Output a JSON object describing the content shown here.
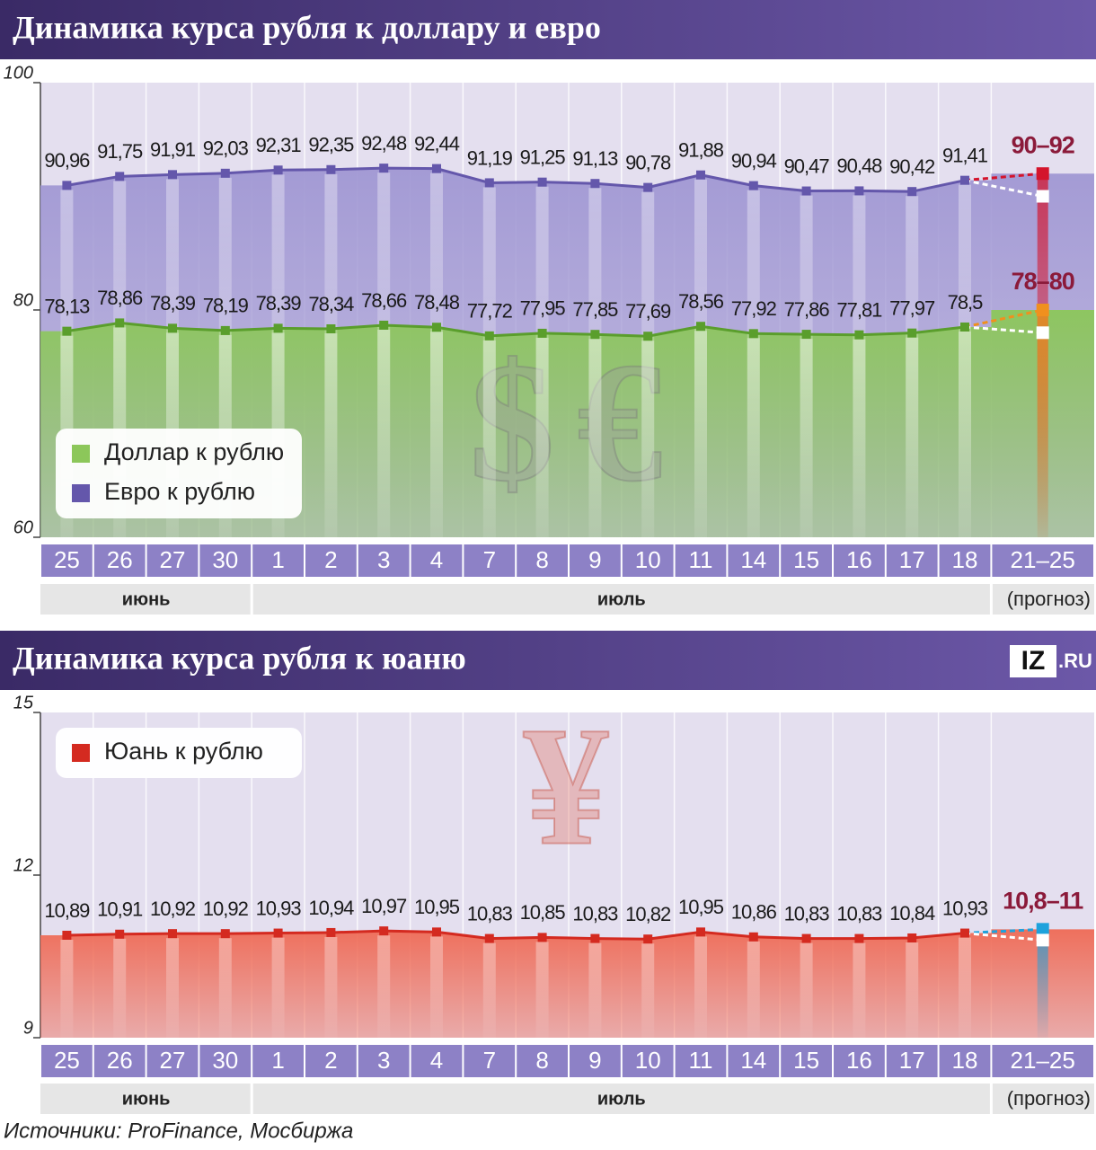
{
  "chart_data": [
    {
      "type": "line",
      "title": "Динамика курса рубля к доллару и евро",
      "categories": [
        "25",
        "26",
        "27",
        "30",
        "1",
        "2",
        "3",
        "4",
        "7",
        "8",
        "9",
        "10",
        "11",
        "14",
        "15",
        "16",
        "17",
        "18",
        "21–25"
      ],
      "month_groups": [
        {
          "label": "июнь",
          "from": "25",
          "to": "30"
        },
        {
          "label": "июль",
          "from": "1",
          "to": "18"
        }
      ],
      "forecast_label": "(прогноз)",
      "ylim": [
        60,
        100
      ],
      "yticks": [
        60,
        80,
        100
      ],
      "legend": "lower left",
      "symbols": [
        "$",
        "€"
      ],
      "series": [
        {
          "name": "Доллар к рублю",
          "color": "#5a9e2c",
          "fill": "#8cc75a",
          "values": [
            78.13,
            78.86,
            78.39,
            78.19,
            78.39,
            78.34,
            78.66,
            78.48,
            77.72,
            77.95,
            77.85,
            77.69,
            78.56,
            77.92,
            77.86,
            77.81,
            77.97,
            78.5,
            null
          ],
          "value_labels": [
            "78,13",
            "78,86",
            "78,39",
            "78,19",
            "78,39",
            "78,34",
            "78,66",
            "78,48",
            "77,72",
            "77,95",
            "77,85",
            "77,69",
            "78,56",
            "77,92",
            "77,86",
            "77,81",
            "77,97",
            "78,5",
            null
          ],
          "forecast": {
            "low": 78,
            "high": 80,
            "label": "78–80",
            "color": "#f0901e"
          }
        },
        {
          "name": "Евро к рублю",
          "color": "#6457ab",
          "fill": "#a097d3",
          "values": [
            90.96,
            91.75,
            91.91,
            92.03,
            92.31,
            92.35,
            92.48,
            92.44,
            91.19,
            91.25,
            91.13,
            90.78,
            91.88,
            90.94,
            90.47,
            90.48,
            90.42,
            91.41,
            null
          ],
          "value_labels": [
            "90,96",
            "91,75",
            "91,91",
            "92,03",
            "92,31",
            "92,35",
            "92,48",
            "92,44",
            "91,19",
            "91,25",
            "91,13",
            "90,78",
            "91,88",
            "90,94",
            "90,47",
            "90,48",
            "90,42",
            "91,41",
            null
          ],
          "forecast": {
            "low": 90,
            "high": 92,
            "label": "90–92",
            "color": "#d4142c"
          }
        }
      ]
    },
    {
      "type": "line",
      "title": "Динамика курса рубля к юаню",
      "logo": [
        "IZ",
        ".RU"
      ],
      "categories": [
        "25",
        "26",
        "27",
        "30",
        "1",
        "2",
        "3",
        "4",
        "7",
        "8",
        "9",
        "10",
        "11",
        "14",
        "15",
        "16",
        "17",
        "18",
        "21–25"
      ],
      "month_groups": [
        {
          "label": "июнь",
          "from": "25",
          "to": "30"
        },
        {
          "label": "июль",
          "from": "1",
          "to": "18"
        }
      ],
      "forecast_label": "(прогноз)",
      "ylim": [
        9,
        15
      ],
      "yticks": [
        9,
        12,
        15
      ],
      "legend": "upper left",
      "symbols": [
        "¥"
      ],
      "series": [
        {
          "name": "Юань к рублю",
          "color": "#d42a20",
          "fill": "#ef6a55",
          "values": [
            10.89,
            10.91,
            10.92,
            10.92,
            10.93,
            10.94,
            10.97,
            10.95,
            10.83,
            10.85,
            10.83,
            10.82,
            10.95,
            10.86,
            10.83,
            10.83,
            10.84,
            10.93,
            null
          ],
          "value_labels": [
            "10,89",
            "10,91",
            "10,92",
            "10,92",
            "10,93",
            "10,94",
            "10,97",
            "10,95",
            "10,83",
            "10,85",
            "10,83",
            "10,82",
            "10,95",
            "10,86",
            "10,83",
            "10,83",
            "10,84",
            "10,93",
            null
          ],
          "forecast": {
            "low": 10.8,
            "high": 11,
            "label": "10,8–11",
            "color": "#1ea2dc"
          }
        }
      ]
    }
  ],
  "source": "Источники: ProFinance, Мосбиржа"
}
